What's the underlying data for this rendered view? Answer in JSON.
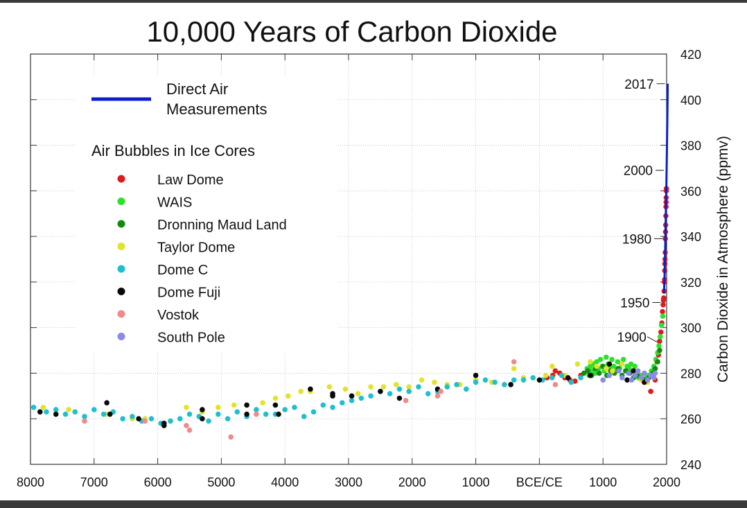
{
  "chart_data": {
    "type": "scatter",
    "title": "10,000 Years of Carbon Dioxide",
    "xlabel": "",
    "ylabel": "Carbon Dioxide in Atmosphere (ppmv)",
    "xlim": [
      -8000,
      2000
    ],
    "ylim": [
      240,
      420
    ],
    "x_ticks": [
      -8000,
      -7000,
      -6000,
      -5000,
      -4000,
      -3000,
      -2000,
      -1000,
      0,
      1000,
      2000
    ],
    "x_tick_labels": [
      "8000",
      "7000",
      "6000",
      "5000",
      "4000",
      "3000",
      "2000",
      "1000",
      "BCE/CE",
      "1000",
      "2000"
    ],
    "y_ticks": [
      240,
      260,
      280,
      300,
      320,
      340,
      360,
      380,
      400,
      420
    ],
    "y_tick_labels": [
      "240",
      "260",
      "280",
      "300",
      "320",
      "340",
      "360",
      "380",
      "400",
      "420"
    ],
    "grid": true,
    "legend": {
      "line_entry": {
        "label_line1": "Direct Air",
        "label_line2": "Measurements",
        "color": "#0a1fc8"
      },
      "heading": "Air Bubbles in Ice Cores",
      "entries": [
        {
          "label": "Law Dome",
          "color": "#dc1c1c"
        },
        {
          "label": "WAIS",
          "color": "#2ee02e"
        },
        {
          "label": "Dronning Maud Land",
          "color": "#128a12"
        },
        {
          "label": "Taylor Dome",
          "color": "#e3e32a"
        },
        {
          "label": "Dome C",
          "color": "#1fbfd2"
        },
        {
          "label": "Dome Fuji",
          "color": "#0a0a0a"
        },
        {
          "label": "Vostok",
          "color": "#f08a8a"
        },
        {
          "label": "South Pole",
          "color": "#8a8ae8"
        }
      ]
    },
    "annotations": [
      {
        "label": "2017",
        "x": 2017,
        "y": 407
      },
      {
        "label": "2000",
        "x": 2000,
        "y": 369
      },
      {
        "label": "1980",
        "x": 1980,
        "y": 339
      },
      {
        "label": "1950",
        "x": 1950,
        "y": 311
      },
      {
        "label": "1900",
        "x": 1900,
        "y": 296
      }
    ],
    "series": [
      {
        "name": "Direct Air Measurements",
        "kind": "line",
        "color": "#0a1fc8",
        "x": [
          1958,
          1965,
          1970,
          1975,
          1980,
          1985,
          1990,
          1995,
          2000,
          2005,
          2010,
          2015,
          2017
        ],
        "y": [
          315,
          320,
          325,
          331,
          338,
          346,
          354,
          360,
          369,
          379,
          389,
          400,
          407
        ]
      },
      {
        "name": "Law Dome",
        "color": "#dc1c1c",
        "x": [
          120,
          210,
          250,
          320,
          400,
          480,
          560,
          650,
          1850,
          1872,
          1890,
          1910,
          1925,
          1935,
          1945,
          1950,
          1955,
          1960,
          1965,
          1968,
          1970,
          1972,
          1975,
          1978,
          1980,
          1983,
          1985,
          1988,
          1990,
          1992,
          1993,
          1995,
          1996,
          1750,
          1820
        ],
        "y": [
          278,
          279,
          281,
          280,
          278,
          277,
          276.5,
          279,
          285,
          288,
          294,
          298,
          302,
          307,
          310,
          312,
          313,
          316,
          320,
          321,
          325,
          328,
          330,
          333,
          339,
          342,
          345,
          349,
          353,
          355,
          357,
          360,
          361,
          272,
          277
        ]
      },
      {
        "name": "WAIS",
        "color": "#2ee02e",
        "x": [
          750,
          780,
          800,
          820,
          850,
          880,
          900,
          930,
          960,
          990,
          1020,
          1050,
          1080,
          1110,
          1140,
          1170,
          1200,
          1230,
          1260,
          1290,
          1320,
          1350,
          1380,
          1410,
          1440,
          1470,
          1500,
          1530,
          1560,
          1600,
          1640,
          1680,
          1720,
          1760,
          1800,
          1830,
          1860,
          1880,
          1900,
          1920,
          1940
        ],
        "y": [
          282,
          279,
          283,
          281,
          284,
          280,
          285,
          282,
          286,
          283,
          281,
          287,
          284,
          282,
          286,
          283,
          281,
          285,
          282,
          284,
          286,
          281,
          283,
          282,
          284,
          281,
          283,
          280,
          278,
          279,
          277,
          278,
          279,
          281,
          283,
          286,
          289,
          292,
          296,
          301,
          305
        ]
      },
      {
        "name": "Dronning Maud Land",
        "color": "#128a12",
        "x": [
          700,
          760,
          820,
          880,
          940,
          1000,
          1060,
          1120,
          1180,
          1240,
          1300,
          1360,
          1420,
          1480,
          1540,
          1600,
          1660,
          1720,
          1780,
          1820,
          1860,
          1890
        ],
        "y": [
          280,
          281,
          279,
          282,
          280,
          283,
          279,
          281,
          280,
          282,
          279,
          281,
          280,
          278,
          279,
          278,
          277,
          278,
          280,
          282,
          285,
          290
        ]
      },
      {
        "name": "Taylor Dome",
        "color": "#e3e32a",
        "x": [
          -7800,
          -7400,
          -6800,
          -6400,
          -6200,
          -5800,
          -5550,
          -5300,
          -5050,
          -4800,
          -4600,
          -4350,
          -4150,
          -3950,
          -3750,
          -3600,
          -3300,
          -3050,
          -2850,
          -2650,
          -2450,
          -2250,
          -2050,
          -1850,
          -1650,
          -1450,
          -1250,
          -1000,
          -750,
          -550,
          -400,
          -250,
          -100,
          100,
          200,
          400,
          600,
          800,
          900,
          1050,
          1150,
          1300,
          1500,
          1600,
          1700
        ],
        "y": [
          265,
          264,
          262,
          260,
          260,
          259,
          265,
          263,
          265,
          266,
          266,
          267,
          269,
          270,
          272,
          272,
          274,
          273,
          271,
          274,
          274,
          275,
          274,
          277,
          276,
          275,
          275,
          277,
          276,
          275,
          282,
          278,
          278,
          279,
          283,
          279,
          284,
          285,
          283,
          282,
          281,
          284,
          280,
          277,
          276
        ]
      },
      {
        "name": "Dome C",
        "color": "#1fbfd2",
        "x": [
          -7950,
          -7750,
          -7600,
          -7450,
          -7300,
          -7150,
          -7000,
          -6850,
          -6700,
          -6550,
          -6400,
          -6250,
          -6100,
          -5950,
          -5800,
          -5650,
          -5500,
          -5350,
          -5200,
          -5050,
          -4900,
          -4750,
          -4600,
          -4450,
          -4300,
          -4150,
          -4000,
          -3850,
          -3700,
          -3550,
          -3400,
          -3250,
          -3100,
          -2950,
          -2800,
          -2650,
          -2500,
          -2350,
          -2200,
          -2050,
          -1900,
          -1750,
          -1600,
          -1450,
          -1300,
          -1150,
          -1000,
          -850,
          -700,
          -550,
          -400,
          -250,
          -100,
          50,
          200,
          350,
          500,
          650
        ],
        "y": [
          265,
          263,
          264,
          262,
          263,
          261,
          264,
          262,
          263,
          260,
          261,
          259,
          260,
          258,
          259,
          260,
          262,
          261,
          259,
          262,
          260,
          263,
          261,
          264,
          262,
          262,
          264,
          265,
          261,
          263,
          266,
          265,
          267,
          268,
          269,
          270,
          272,
          271,
          273,
          272,
          274,
          271,
          272,
          274,
          275,
          273,
          276,
          277,
          276,
          275,
          277,
          277,
          278,
          277,
          278,
          279,
          276,
          278
        ]
      },
      {
        "name": "Dome Fuji",
        "color": "#0a0a0a",
        "x": [
          -7850,
          -7600,
          -6800,
          -6750,
          -6300,
          -5900,
          -5900,
          -5300,
          -5300,
          -4600,
          -4600,
          -4150,
          -4100,
          -3600,
          -3250,
          -3250,
          -2950,
          -2500,
          -2200,
          -1600,
          -1000,
          -450,
          0,
          450,
          800,
          1100,
          1380,
          1480,
          1650
        ],
        "y": [
          263,
          262,
          267,
          262,
          260,
          258,
          257,
          264,
          260,
          266,
          262,
          266,
          262,
          273,
          271,
          270,
          270,
          272,
          269,
          273,
          279,
          275,
          277,
          278,
          279,
          284,
          277,
          281,
          276
        ]
      },
      {
        "name": "Vostok",
        "color": "#f08a8a",
        "x": [
          -7150,
          -6200,
          -5550,
          -5500,
          -4850,
          -4450,
          -2100,
          -1600,
          -1550,
          -400,
          250,
          1500
        ],
        "y": [
          259,
          259,
          257,
          255,
          252,
          262,
          268,
          270,
          272,
          285,
          275,
          279
        ]
      },
      {
        "name": "South Pole",
        "color": "#8a8ae8",
        "x": [
          1000,
          1100,
          1250,
          1300,
          1400,
          1450,
          1500,
          1550,
          1600,
          1650,
          1700,
          1750,
          1800,
          1820
        ],
        "y": [
          277,
          279,
          281,
          278,
          280,
          277,
          279,
          281,
          278,
          280,
          277,
          279,
          278,
          280
        ]
      }
    ]
  }
}
